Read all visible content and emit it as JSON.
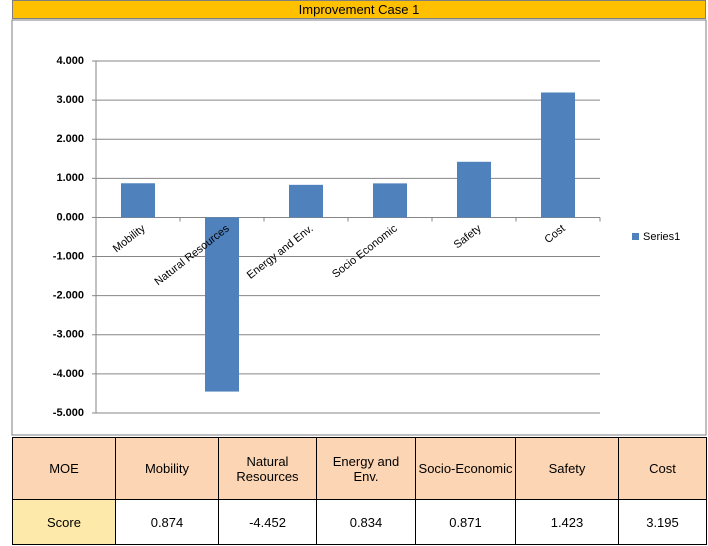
{
  "chart_data": {
    "type": "bar",
    "title": "Improvement Case 1",
    "categories": [
      "Mobility",
      "Natural Resources",
      "Energy and Env.",
      "Socio Economic",
      "Safety",
      "Cost"
    ],
    "series": [
      {
        "name": "Series1",
        "color": "#4f81bd",
        "values": [
          0.874,
          -4.452,
          0.834,
          0.871,
          1.423,
          3.195
        ]
      }
    ],
    "ylim": [
      -5,
      4
    ],
    "yticks": [
      {
        "value": -5,
        "label": "-5.000"
      },
      {
        "value": -4,
        "label": "-4.000"
      },
      {
        "value": -3,
        "label": "-3.000"
      },
      {
        "value": -2,
        "label": "-2.000"
      },
      {
        "value": -1,
        "label": "-1.000"
      },
      {
        "value": 0,
        "label": "0.000"
      },
      {
        "value": 1,
        "label": "1.000"
      },
      {
        "value": 2,
        "label": "2.000"
      },
      {
        "value": 3,
        "label": "3.000"
      },
      {
        "value": 4,
        "label": "4.000"
      }
    ],
    "grid": true,
    "legend": "right"
  },
  "table": {
    "header": [
      "MOE",
      "Mobility",
      "Natural Resources",
      "Energy and Env.",
      "Socio-Economic",
      "Safety",
      "Cost"
    ],
    "row_label": "Score"
  }
}
